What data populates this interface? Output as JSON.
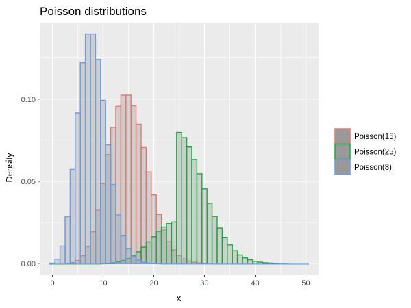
{
  "chart_data": {
    "type": "bar",
    "title": "Poisson distributions",
    "xlabel": "x",
    "ylabel": "Density",
    "xlim": [
      -2.5,
      52.5
    ],
    "ylim": [
      -0.007,
      0.1465
    ],
    "x_ticks": [
      0,
      10,
      20,
      30,
      40,
      50
    ],
    "x_tick_labels": [
      "0",
      "10",
      "20",
      "30",
      "40",
      "50"
    ],
    "y_ticks": [
      0.0,
      0.05,
      0.1
    ],
    "y_tick_labels": [
      "0.00",
      "0.05",
      "0.10"
    ],
    "grid": true,
    "legend_position": "right",
    "background_color": "#ebebeb",
    "bar_fill": "#999999",
    "series": [
      {
        "name": "Poisson(15)",
        "color": "#e8756a",
        "x": [
          0,
          1,
          2,
          3,
          4,
          5,
          6,
          7,
          8,
          9,
          10,
          11,
          12,
          13,
          14,
          15,
          16,
          17,
          18,
          19,
          20,
          21,
          22,
          23,
          24,
          25,
          26,
          27,
          28,
          29,
          30,
          31,
          32,
          33,
          34,
          35,
          36,
          37,
          38,
          39,
          40,
          41,
          42,
          43,
          44,
          45,
          46,
          47,
          48,
          49,
          50
        ],
        "values": [
          0.0,
          0.0,
          0.0,
          0.0002,
          0.0006,
          0.0019,
          0.0048,
          0.0104,
          0.0194,
          0.0324,
          0.0486,
          0.0663,
          0.0829,
          0.0956,
          0.1024,
          0.1024,
          0.096,
          0.0847,
          0.0706,
          0.0557,
          0.0418,
          0.0299,
          0.0204,
          0.0133,
          0.0083,
          0.005,
          0.0029,
          0.0016,
          0.0009,
          0.0004,
          0.0002,
          0.0001,
          0.0,
          0.0,
          0.0,
          0.0,
          0.0,
          0.0,
          0.0,
          0.0,
          0.0,
          0.0,
          0.0,
          0.0,
          0.0,
          0.0,
          0.0,
          0.0,
          0.0,
          0.0,
          0.0
        ]
      },
      {
        "name": "Poisson(25)",
        "color": "#1aaa3c",
        "x": [
          0,
          1,
          2,
          3,
          4,
          5,
          6,
          7,
          8,
          9,
          10,
          11,
          12,
          13,
          14,
          15,
          16,
          17,
          18,
          19,
          20,
          21,
          22,
          23,
          24,
          25,
          26,
          27,
          28,
          29,
          30,
          31,
          32,
          33,
          34,
          35,
          36,
          37,
          38,
          39,
          40,
          41,
          42,
          43,
          44,
          45,
          46,
          47,
          48,
          49,
          50
        ],
        "values": [
          0.0,
          0.0,
          0.0,
          0.0,
          0.0,
          0.0,
          0.0,
          0.0,
          0.0,
          0.0,
          0.0001,
          0.0002,
          0.0005,
          0.001,
          0.0019,
          0.0031,
          0.0049,
          0.0072,
          0.01,
          0.0132,
          0.0164,
          0.0196,
          0.0223,
          0.0243,
          0.0253,
          0.0797,
          0.0766,
          0.0709,
          0.0633,
          0.0546,
          0.0455,
          0.0367,
          0.0287,
          0.0217,
          0.016,
          0.0114,
          0.0079,
          0.0053,
          0.0035,
          0.0023,
          0.0014,
          0.0009,
          0.0005,
          0.0003,
          0.0002,
          0.0001,
          0.0001,
          0.0,
          0.0,
          0.0,
          0.0
        ]
      },
      {
        "name": "Poisson(8)",
        "color": "#6a9ae8",
        "x": [
          0,
          1,
          2,
          3,
          4,
          5,
          6,
          7,
          8,
          9,
          10,
          11,
          12,
          13,
          14,
          15,
          16,
          17,
          18,
          19,
          20,
          21,
          22,
          23,
          24,
          25,
          26,
          27,
          28,
          29,
          30,
          31,
          32,
          33,
          34,
          35,
          36,
          37,
          38,
          39,
          40,
          41,
          42,
          43,
          44,
          45,
          46,
          47,
          48,
          49,
          50
        ],
        "values": [
          0.0003,
          0.0027,
          0.0107,
          0.0286,
          0.0573,
          0.0916,
          0.1221,
          0.1396,
          0.1396,
          0.1241,
          0.0993,
          0.0722,
          0.0481,
          0.0296,
          0.0169,
          0.009,
          0.0045,
          0.0021,
          0.0009,
          0.0004,
          0.0002,
          0.0001,
          0.0,
          0.0,
          0.0,
          0.0,
          0.0,
          0.0,
          0.0,
          0.0,
          0.0,
          0.0,
          0.0,
          0.0,
          0.0,
          0.0,
          0.0,
          0.0,
          0.0,
          0.0,
          0.0,
          0.0,
          0.0,
          0.0,
          0.0,
          0.0,
          0.0,
          0.0,
          0.0,
          0.0,
          0.0
        ]
      }
    ]
  }
}
